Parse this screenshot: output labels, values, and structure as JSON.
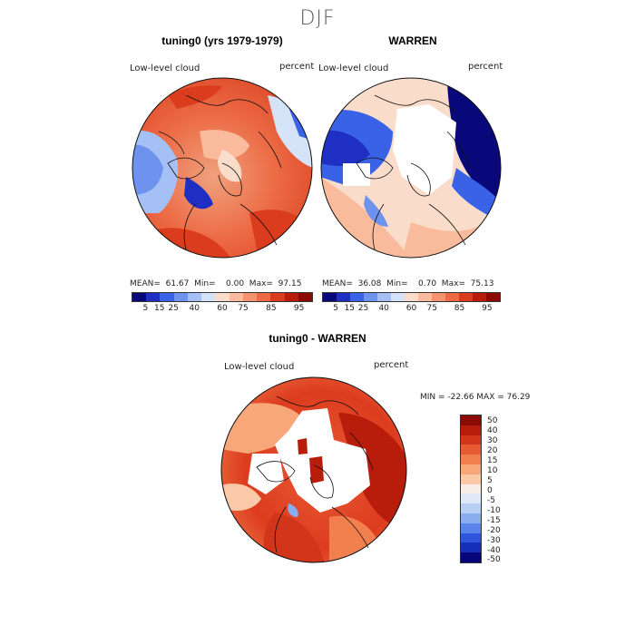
{
  "season": "DJF",
  "panels": [
    {
      "title": "tuning0 (yrs 1979-1979)",
      "variable": "Low-level cloud",
      "units": "percent",
      "stats": "MEAN=  61.67  Min=    0.00  Max=  97.15",
      "colorbar_ticks": [
        "5",
        "15",
        "25",
        "40",
        "60",
        "75",
        "85",
        "95"
      ]
    },
    {
      "title": "WARREN",
      "variable": "Low-level cloud",
      "units": "percent",
      "stats": "MEAN=  36.08  Min=    0.70  Max=  75.13",
      "colorbar_ticks": [
        "5",
        "15",
        "25",
        "40",
        "60",
        "75",
        "85",
        "95"
      ]
    }
  ],
  "diff": {
    "title": "tuning0 - WARREN",
    "variable": "Low-level cloud",
    "units": "percent",
    "minmax": "MIN = -22.66 MAX =  76.29",
    "colorbar_labels": [
      "50",
      "40",
      "30",
      "20",
      "15",
      "10",
      "5",
      "0",
      "-5",
      "-10",
      "-15",
      "-20",
      "-30",
      "-40",
      "-50"
    ]
  },
  "colors": {
    "abs_scale": [
      "#08087a",
      "#1f2fc4",
      "#3a62e6",
      "#6d93ef",
      "#a4c0f4",
      "#d4e3f8",
      "#fadccb",
      "#f9bb9c",
      "#f59370",
      "#ee6a44",
      "#dc3c1e",
      "#b81c0b",
      "#8c0a04"
    ],
    "diff_scale": [
      "#8c0a04",
      "#b81c0b",
      "#d2361a",
      "#e85a34",
      "#f2804f",
      "#f7a77a",
      "#fbc9a8",
      "#f9eee6",
      "#dfe9f8",
      "#b8cff4",
      "#8aadf0",
      "#5a84ea",
      "#2f55dc",
      "#1530b8",
      "#06067a"
    ]
  }
}
